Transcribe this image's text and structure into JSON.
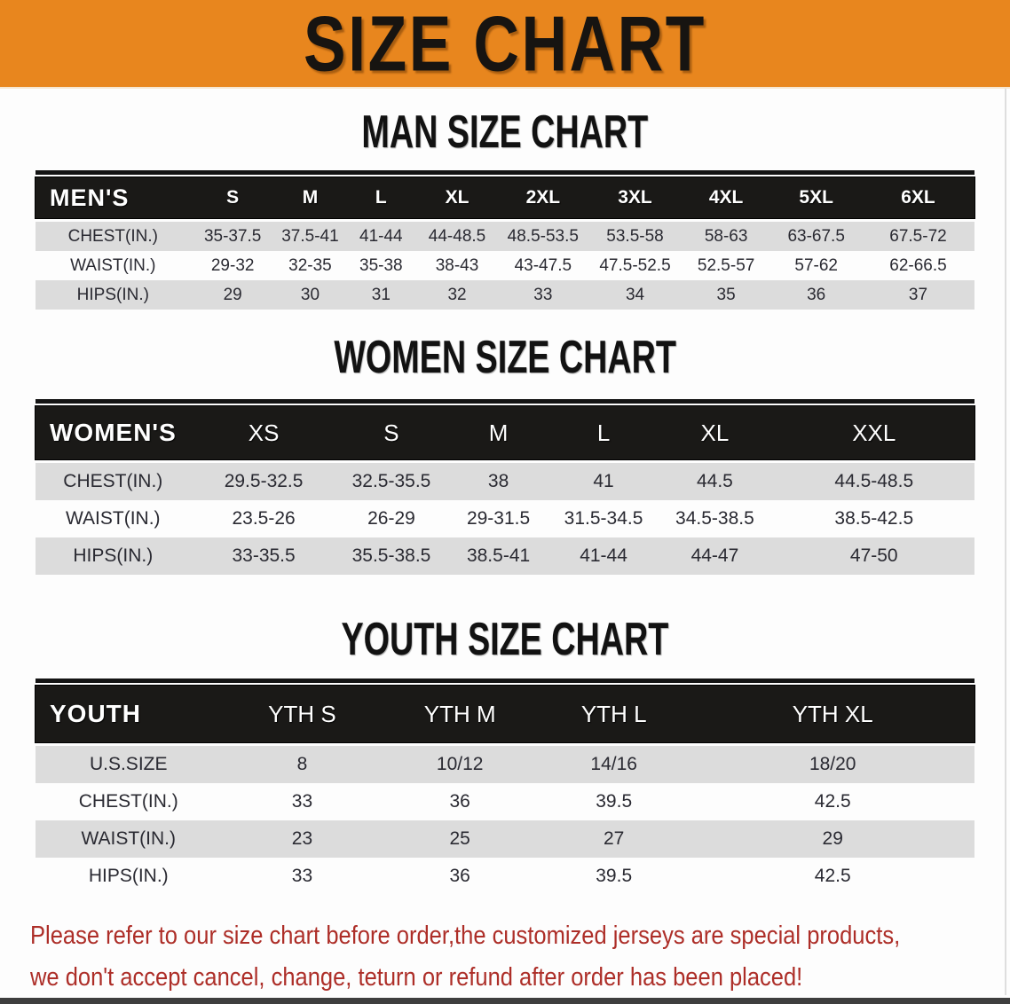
{
  "banner": {
    "title": "SIZE CHART"
  },
  "colors": {
    "banner_bg": "#E8861E",
    "table_header_bg": "#1A1917",
    "row_stripe": "#DCDCDC",
    "header_text": "#FFFFFF",
    "body_text": "#2A2A32",
    "note_text": "#AD2E28"
  },
  "sections": {
    "men": {
      "heading": "MAN SIZE CHART",
      "header": [
        "MEN'S",
        "S",
        "M",
        "L",
        "XL",
        "2XL",
        "3XL",
        "4XL",
        "5XL",
        "6XL"
      ],
      "rows": [
        [
          "CHEST(IN.)",
          "35-37.5",
          "37.5-41",
          "41-44",
          "44-48.5",
          "48.5-53.5",
          "53.5-58",
          "58-63",
          "63-67.5",
          "67.5-72"
        ],
        [
          "WAIST(IN.)",
          "29-32",
          "32-35",
          "35-38",
          "38-43",
          "43-47.5",
          "47.5-52.5",
          "52.5-57",
          "57-62",
          "62-66.5"
        ],
        [
          "HIPS(IN.)",
          "29",
          "30",
          "31",
          "32",
          "33",
          "34",
          "35",
          "36",
          "37"
        ]
      ]
    },
    "women": {
      "heading": "WOMEN SIZE CHART",
      "header": [
        "WOMEN'S",
        "XS",
        "S",
        "M",
        "L",
        "XL",
        "XXL"
      ],
      "rows": [
        [
          "CHEST(IN.)",
          "29.5-32.5",
          "32.5-35.5",
          "38",
          "41",
          "44.5",
          "44.5-48.5"
        ],
        [
          "WAIST(IN.)",
          "23.5-26",
          "26-29",
          "29-31.5",
          "31.5-34.5",
          "34.5-38.5",
          "38.5-42.5"
        ],
        [
          "HIPS(IN.)",
          "33-35.5",
          "35.5-38.5",
          "38.5-41",
          "41-44",
          "44-47",
          "47-50"
        ]
      ]
    },
    "youth": {
      "heading": "YOUTH SIZE CHART",
      "header": [
        "YOUTH",
        "YTH S",
        "YTH M",
        "YTH L",
        "YTH XL"
      ],
      "rows": [
        [
          "U.S.SIZE",
          "8",
          "10/12",
          "14/16",
          "18/20"
        ],
        [
          "CHEST(IN.)",
          "33",
          "36",
          "39.5",
          "42.5"
        ],
        [
          "WAIST(IN.)",
          "23",
          "25",
          "27",
          "29"
        ],
        [
          "HIPS(IN.)",
          "33",
          "36",
          "39.5",
          "42.5"
        ]
      ]
    }
  },
  "note": {
    "line1": "Please refer to our size chart before order,the customized jerseys are special products,",
    "line2": "we don't accept cancel, change, teturn or refund after order has been placed!"
  }
}
